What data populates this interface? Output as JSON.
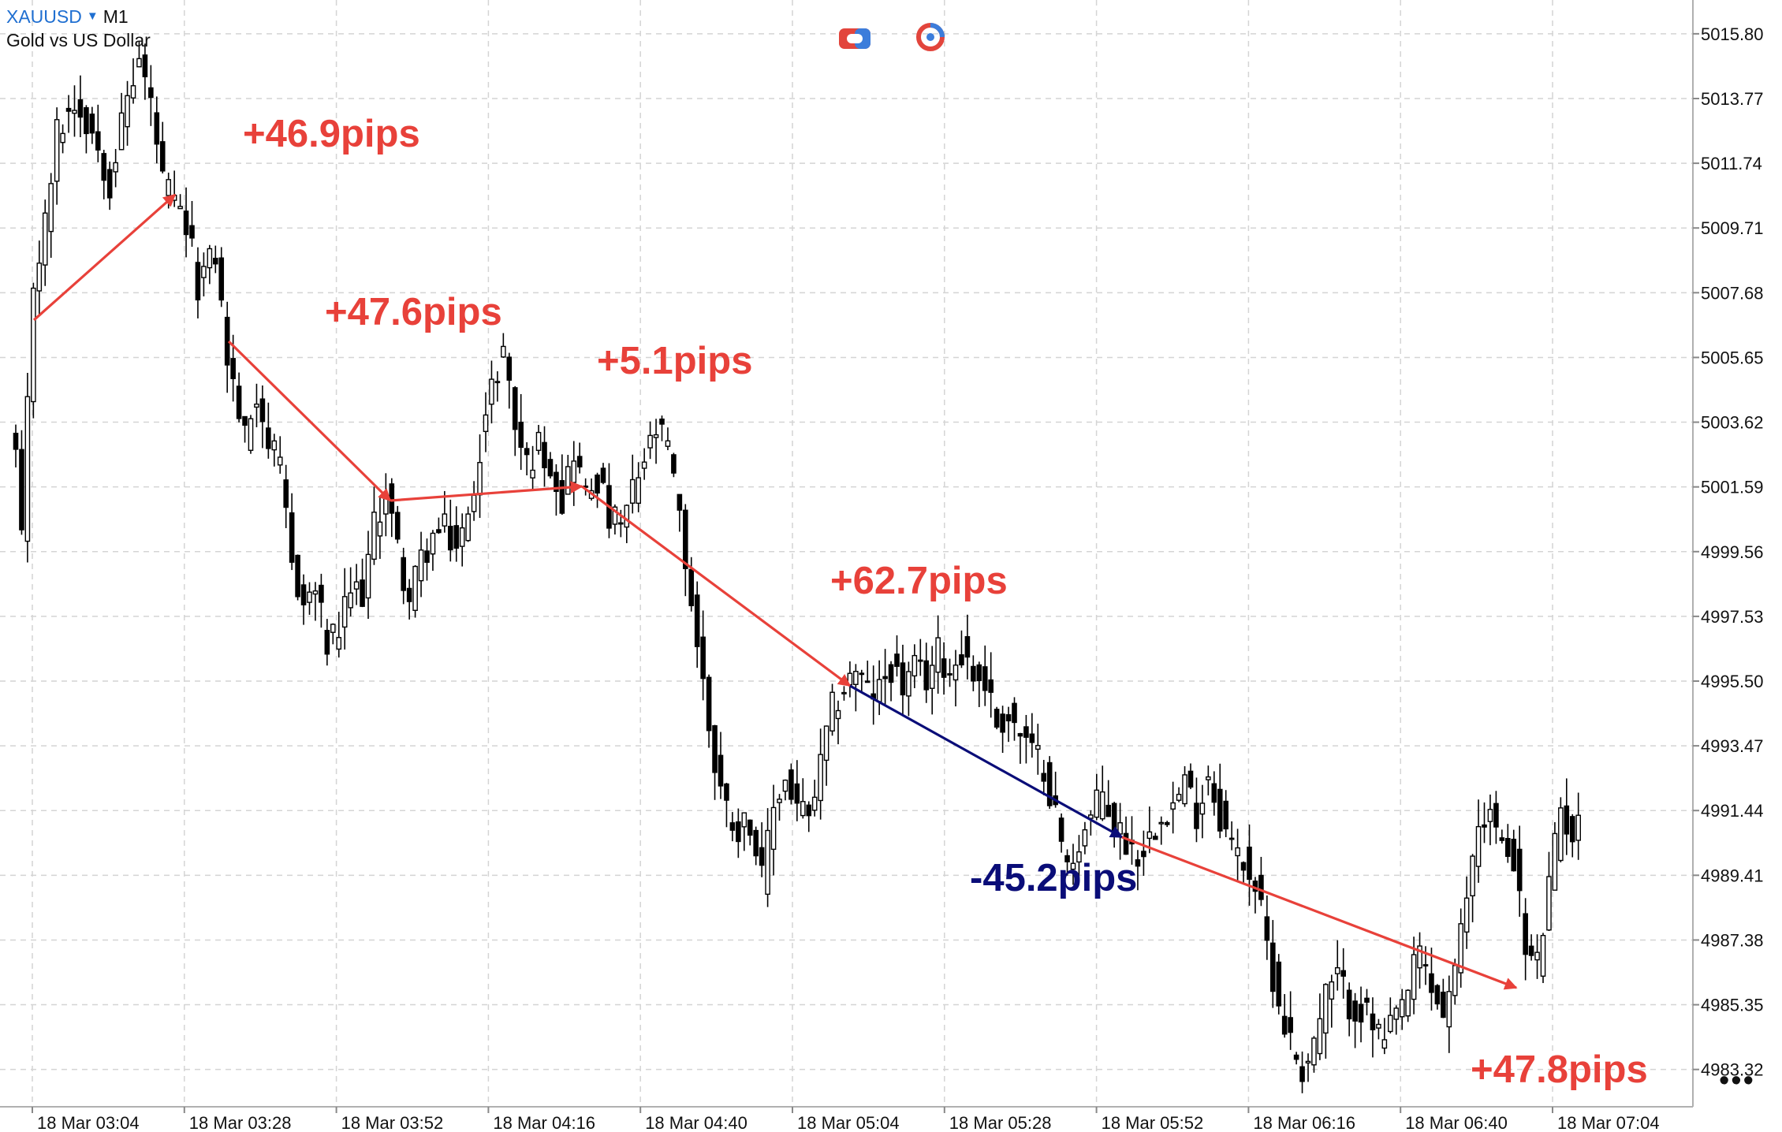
{
  "header": {
    "symbol": "XAUUSD",
    "timeframe": "M1",
    "description": "Gold vs US Dollar"
  },
  "toolbar": {
    "icons": [
      "one-click-trading-icon",
      "chart-refresh-icon"
    ]
  },
  "more_button": "•••",
  "colors": {
    "gain": "#e8413a",
    "loss": "#0a0d78",
    "bull_fill": "#ffffff",
    "bear_fill": "#000000",
    "grid": "#d4d4d4"
  },
  "annotations": [
    {
      "text": "+46.9pips",
      "color": "gain"
    },
    {
      "text": "+47.6pips",
      "color": "gain"
    },
    {
      "text": "+5.1pips",
      "color": "gain"
    },
    {
      "text": "+62.7pips",
      "color": "gain"
    },
    {
      "text": "-45.2pips",
      "color": "loss"
    },
    {
      "text": "+47.8pips",
      "color": "gain"
    }
  ],
  "chart_data": {
    "type": "candlestick",
    "symbol": "XAUUSD",
    "timeframe": "M1",
    "y_tick_labels": [
      "5015.80",
      "5013.77",
      "5011.74",
      "5009.71",
      "5007.68",
      "5005.65",
      "5003.62",
      "5001.59",
      "4999.56",
      "4997.53",
      "4995.50",
      "4993.47",
      "4991.44",
      "4989.41",
      "4987.38",
      "4985.35",
      "4983.32"
    ],
    "y_ticks": [
      5015.8,
      5013.77,
      5011.74,
      5009.71,
      5007.68,
      5005.65,
      5003.62,
      5001.59,
      4999.56,
      4997.53,
      4995.5,
      4993.47,
      4991.44,
      4989.41,
      4987.38,
      4985.35,
      4983.32
    ],
    "ylim": [
      4982.15,
      5016.86
    ],
    "x_tick_labels": [
      "18 Mar 03:04",
      "18 Mar 03:28",
      "18 Mar 03:52",
      "18 Mar 04:16",
      "18 Mar 04:40",
      "18 Mar 05:04",
      "18 Mar 05:28",
      "18 Mar 05:52",
      "18 Mar 06:16",
      "18 Mar 06:40",
      "18 Mar 07:04"
    ],
    "grid": true,
    "price_path": [
      [
        0,
        5002.6
      ],
      [
        1,
        4999.7
      ],
      [
        2,
        5004.0
      ],
      [
        3,
        5008.0
      ],
      [
        5,
        5009.8
      ],
      [
        7,
        5012.7
      ],
      [
        10,
        5013.7
      ],
      [
        13,
        5012.8
      ],
      [
        16,
        5011.2
      ],
      [
        19,
        5013.8
      ],
      [
        21,
        5015.0
      ],
      [
        23,
        5013.6
      ],
      [
        25,
        5011.1
      ],
      [
        27,
        5010.4
      ],
      [
        29,
        5009.7
      ],
      [
        31,
        5008.0
      ],
      [
        34,
        5008.9
      ],
      [
        36,
        5005.6
      ],
      [
        39,
        5003.1
      ],
      [
        41,
        5004.6
      ],
      [
        43,
        5003.0
      ],
      [
        45,
        5002.0
      ],
      [
        47,
        4999.2
      ],
      [
        49,
        4997.9
      ],
      [
        51,
        4998.4
      ],
      [
        53,
        4996.6
      ],
      [
        55,
        4997.0
      ],
      [
        57,
        4998.3
      ],
      [
        59,
        4998.3
      ],
      [
        61,
        5000.3
      ],
      [
        63,
        5001.5
      ],
      [
        65,
        4999.6
      ],
      [
        67,
        4998.0
      ],
      [
        69,
        4999.3
      ],
      [
        71,
        5000.0
      ],
      [
        73,
        5000.2
      ],
      [
        75,
        4999.7
      ],
      [
        77,
        5000.5
      ],
      [
        79,
        5002.9
      ],
      [
        81,
        5004.6
      ],
      [
        83,
        5006.0
      ],
      [
        85,
        5003.5
      ],
      [
        87,
        5002.3
      ],
      [
        89,
        5002.9
      ],
      [
        91,
        5002.4
      ],
      [
        93,
        5001.2
      ],
      [
        95,
        5002.8
      ],
      [
        97,
        5001.3
      ],
      [
        99,
        5001.9
      ],
      [
        101,
        5000.6
      ],
      [
        103,
        5000.3
      ],
      [
        105,
        5001.4
      ],
      [
        107,
        5002.4
      ],
      [
        109,
        5003.3
      ],
      [
        111,
        5002.8
      ],
      [
        113,
        5000.5
      ],
      [
        115,
        4998.0
      ],
      [
        117,
        4995.4
      ],
      [
        119,
        4992.9
      ],
      [
        121,
        4991.5
      ],
      [
        123,
        4990.9
      ],
      [
        125,
        4991.2
      ],
      [
        127,
        4989.2
      ],
      [
        129,
        4991.6
      ],
      [
        131,
        4992.4
      ],
      [
        133,
        4991.6
      ],
      [
        135,
        4991.1
      ],
      [
        137,
        4992.8
      ],
      [
        139,
        4994.6
      ],
      [
        141,
        4995.3
      ],
      [
        143,
        4995.9
      ],
      [
        145,
        4995.1
      ],
      [
        147,
        4995.2
      ],
      [
        149,
        4996.0
      ],
      [
        151,
        4995.3
      ],
      [
        153,
        4995.8
      ],
      [
        155,
        4995.6
      ],
      [
        157,
        4996.4
      ],
      [
        159,
        4995.8
      ],
      [
        161,
        4996.5
      ],
      [
        163,
        4995.7
      ],
      [
        165,
        4995.5
      ],
      [
        167,
        4994.2
      ],
      [
        169,
        4994.4
      ],
      [
        171,
        4993.8
      ],
      [
        173,
        4993.2
      ],
      [
        175,
        4992.9
      ],
      [
        177,
        4991.3
      ],
      [
        179,
        4989.6
      ],
      [
        181,
        4990.5
      ],
      [
        183,
        4991.2
      ],
      [
        185,
        4992.0
      ],
      [
        187,
        4991.0
      ],
      [
        189,
        4990.5
      ],
      [
        191,
        4990.1
      ],
      [
        193,
        4990.6
      ],
      [
        195,
        4991.5
      ],
      [
        197,
        4991.6
      ],
      [
        199,
        4992.3
      ],
      [
        201,
        4991.4
      ],
      [
        203,
        4992.6
      ],
      [
        205,
        4991.3
      ],
      [
        207,
        4990.3
      ],
      [
        209,
        4989.9
      ],
      [
        211,
        4989.1
      ],
      [
        213,
        4987.2
      ],
      [
        215,
        4985.4
      ],
      [
        217,
        4984.2
      ],
      [
        219,
        4983.3
      ],
      [
        221,
        4984.2
      ],
      [
        223,
        4985.6
      ],
      [
        225,
        4986.2
      ],
      [
        227,
        4985.4
      ],
      [
        229,
        4985.2
      ],
      [
        231,
        4984.7
      ],
      [
        233,
        4984.1
      ],
      [
        235,
        4984.9
      ],
      [
        237,
        4985.8
      ],
      [
        239,
        4987.0
      ],
      [
        241,
        4985.8
      ],
      [
        243,
        4985.1
      ],
      [
        245,
        4986.2
      ],
      [
        247,
        4988.8
      ],
      [
        249,
        4991.1
      ],
      [
        251,
        4991.4
      ],
      [
        253,
        4990.2
      ],
      [
        255,
        4990.1
      ],
      [
        257,
        4987.0
      ],
      [
        259,
        4986.6
      ],
      [
        261,
        4989.0
      ],
      [
        263,
        4991.5
      ],
      [
        265,
        4990.7
      ],
      [
        266,
        4990.9
      ]
    ]
  }
}
